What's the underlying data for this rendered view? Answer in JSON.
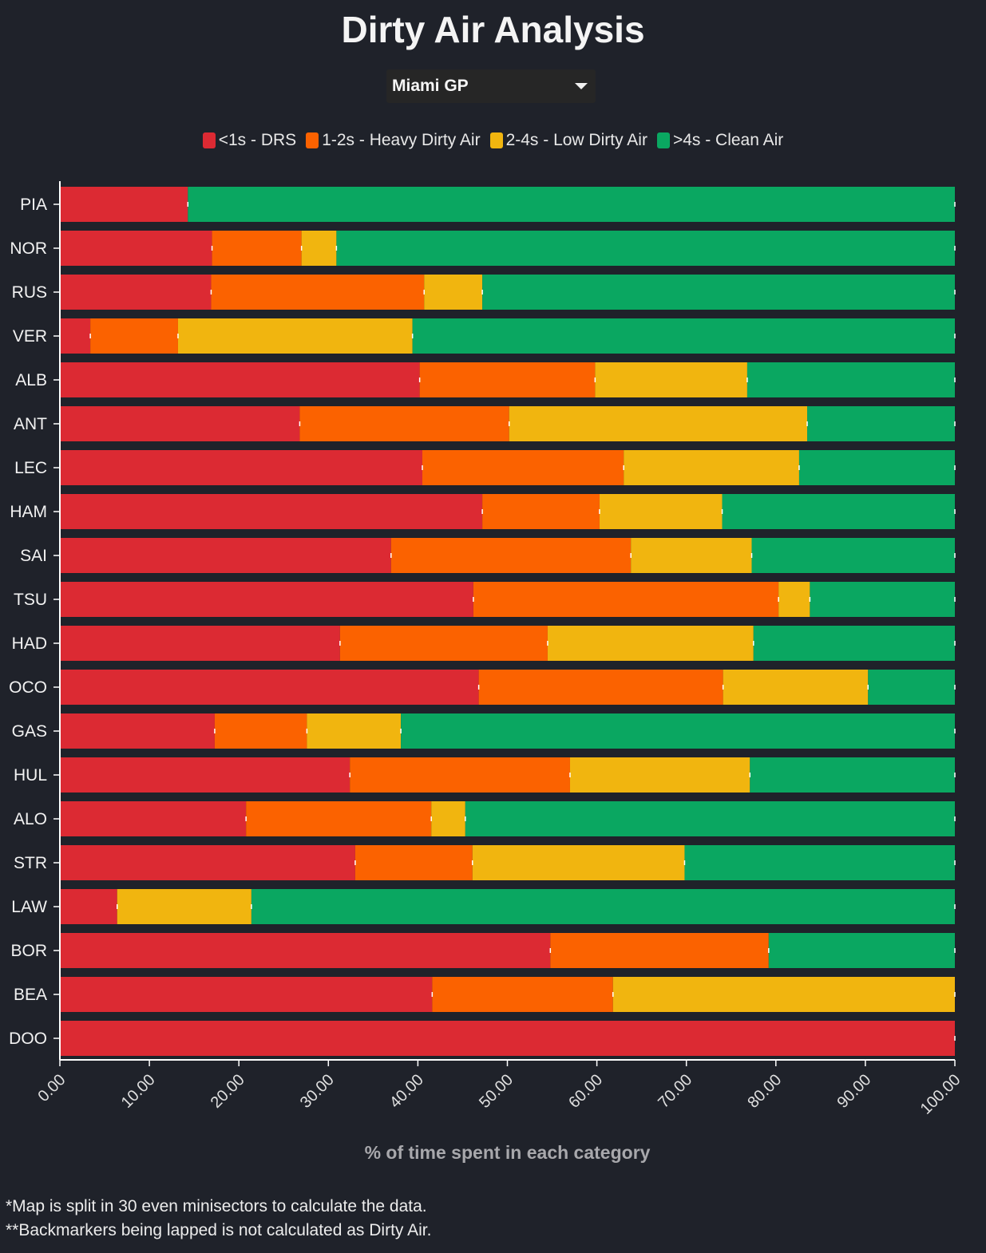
{
  "title": "Dirty Air Analysis",
  "selector": {
    "value": "Miami GP"
  },
  "legend": [
    {
      "label": "<1s - DRS",
      "color": "#dc2a33"
    },
    {
      "label": "1-2s - Heavy Dirty Air",
      "color": "#fb6200"
    },
    {
      "label": "2-4s - Low Dirty Air",
      "color": "#f1b50f"
    },
    {
      "label": ">4s - Clean Air",
      "color": "#0aa761"
    }
  ],
  "footnotes": [
    "*Map is split in 30 even minisectors to calculate the data.",
    "**Backmarkers being lapped is not calculated as Dirty Air."
  ],
  "chart_data": {
    "type": "bar",
    "orientation": "horizontal",
    "stacked": true,
    "categories": [
      "PIA",
      "NOR",
      "RUS",
      "VER",
      "ALB",
      "ANT",
      "LEC",
      "HAM",
      "SAI",
      "TSU",
      "HAD",
      "OCO",
      "GAS",
      "HUL",
      "ALO",
      "STR",
      "LAW",
      "BOR",
      "BEA",
      "DOO"
    ],
    "series": [
      {
        "name": "<1s - DRS",
        "color": "#dc2a33",
        "values": [
          14.3,
          17.0,
          16.9,
          3.4,
          40.2,
          26.8,
          40.5,
          47.2,
          37.0,
          46.2,
          31.3,
          46.8,
          17.3,
          32.4,
          20.8,
          33.0,
          6.4,
          54.8,
          41.6,
          100.0
        ]
      },
      {
        "name": "1-2s - Heavy Dirty Air",
        "color": "#fb6200",
        "values": [
          0.0,
          10.0,
          23.8,
          9.8,
          19.6,
          23.4,
          22.5,
          13.1,
          26.8,
          34.1,
          23.2,
          27.3,
          10.3,
          24.6,
          20.7,
          13.1,
          0.0,
          24.4,
          20.2,
          0.0
        ]
      },
      {
        "name": "2-4s - Low Dirty Air",
        "color": "#f1b50f",
        "values": [
          0.0,
          3.9,
          6.5,
          26.2,
          17.0,
          33.3,
          19.6,
          13.7,
          13.5,
          3.5,
          23.0,
          16.2,
          10.5,
          20.1,
          3.8,
          23.7,
          15.0,
          0.0,
          38.2,
          0.0
        ]
      },
      {
        "name": ">4s - Clean Air",
        "color": "#0aa761",
        "values": [
          85.7,
          69.1,
          52.8,
          60.6,
          23.2,
          16.5,
          17.4,
          26.0,
          22.7,
          16.2,
          22.5,
          9.7,
          61.9,
          22.9,
          54.7,
          30.2,
          78.6,
          20.8,
          0.0,
          0.0
        ]
      }
    ],
    "xlim": [
      0,
      100
    ],
    "xticks": [
      "0.00",
      "10.00",
      "20.00",
      "30.00",
      "40.00",
      "50.00",
      "60.00",
      "70.00",
      "80.00",
      "90.00",
      "100.00"
    ],
    "xlabel": "% of time spent in each category",
    "ylabel": "",
    "grid": false,
    "legend_position": "top-center"
  }
}
